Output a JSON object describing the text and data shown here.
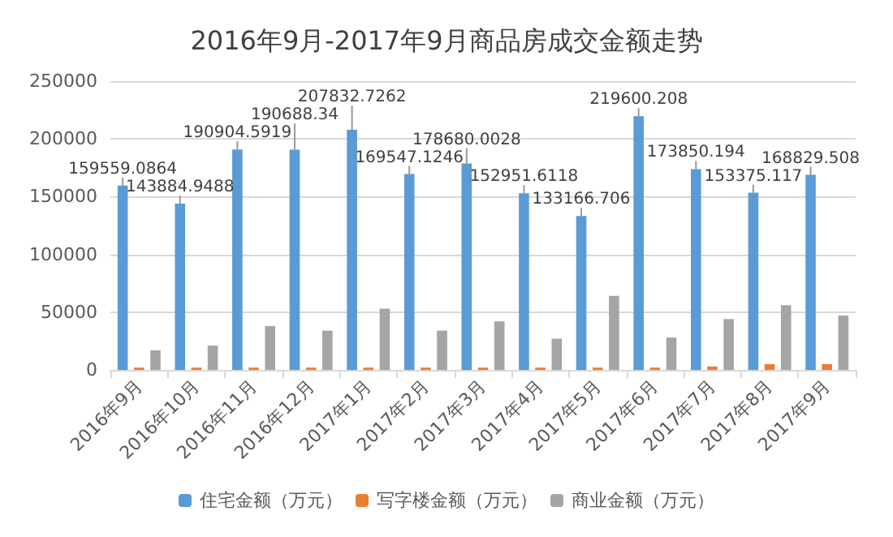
{
  "chart_data": {
    "type": "bar",
    "title": "2016年9月-2017年9月商品房成交金额走势",
    "categories": [
      "2016年9月",
      "2016年10月",
      "2016年11月",
      "2016年12月",
      "2017年1月",
      "2017年2月",
      "2017年3月",
      "2017年4月",
      "2017年5月",
      "2017年6月",
      "2017年7月",
      "2017年8月",
      "2017年9月"
    ],
    "series": [
      {
        "name": "住宅金额（万元）",
        "color": "#5b9bd5",
        "values": [
          159559.0864,
          143884.9488,
          190904.5919,
          190688.34,
          207832.7262,
          169547.1246,
          178680.0028,
          152951.6118,
          133166.706,
          219600.208,
          173850.194,
          153375.117,
          168829.508
        ],
        "value_labels": [
          "159559.0864",
          "143884.9488",
          "190904.5919",
          "190688.34",
          "207832.7262",
          "169547.1246",
          "178680.0028",
          "152951.6118",
          "133166.706",
          "219600.208",
          "173850.194",
          "153375.117",
          "168829.508"
        ]
      },
      {
        "name": "写字楼金额（万元）",
        "color": "#ed7d31",
        "values": [
          2000,
          2000,
          2000,
          2000,
          2000,
          2000,
          2000,
          2000,
          2000,
          2000,
          3000,
          5000,
          5000
        ]
      },
      {
        "name": "商业金额（万元）",
        "color": "#a5a5a5",
        "values": [
          17000,
          21000,
          38000,
          34000,
          53000,
          34000,
          42000,
          27000,
          64000,
          28000,
          44000,
          56000,
          47000
        ]
      }
    ],
    "ylim": [
      0,
      250000
    ],
    "yticks": [
      0,
      50000,
      100000,
      150000,
      200000,
      250000
    ],
    "grid": "y",
    "legend": "bottom"
  }
}
